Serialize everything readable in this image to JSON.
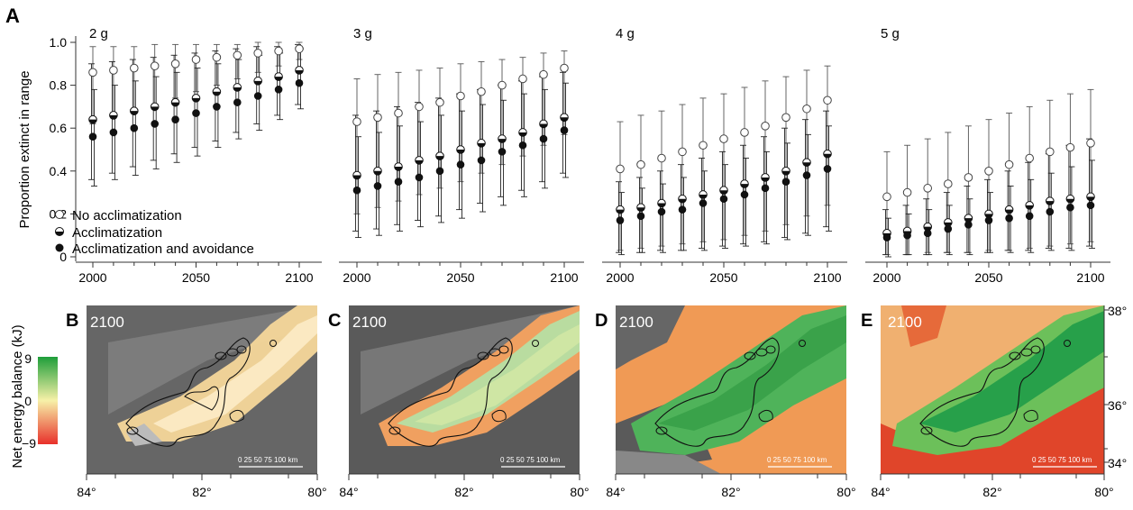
{
  "panel_a": {
    "letter": "A",
    "ylabel": "Proportion extinct in range",
    "yticks": [
      "0",
      "0.2",
      "0.4",
      "0.6",
      "0.8",
      "1.0"
    ],
    "xticks": [
      "2000",
      "2050",
      "2100"
    ],
    "legend": [
      {
        "label": "No acclimatization",
        "marker": "open-circle"
      },
      {
        "label": "Acclimatization",
        "marker": "half-filled-circle"
      },
      {
        "label": "Acclimatization and avoidance",
        "marker": "filled-circle"
      }
    ]
  },
  "chart_data": [
    {
      "type": "scatter",
      "title": "2 g",
      "xlabel": "",
      "ylabel": "Proportion extinct in range",
      "x": [
        2000,
        2010,
        2020,
        2030,
        2040,
        2050,
        2060,
        2070,
        2080,
        2090,
        2100
      ],
      "xlim": [
        1995,
        2105
      ],
      "ylim": [
        0,
        1
      ],
      "error_bars": "vertical whiskers",
      "series": [
        {
          "name": "No acclimatization",
          "values": [
            0.86,
            0.87,
            0.88,
            0.89,
            0.9,
            0.92,
            0.93,
            0.94,
            0.95,
            0.96,
            0.97
          ],
          "lower": [
            0.62,
            0.65,
            0.68,
            0.71,
            0.74,
            0.77,
            0.8,
            0.83,
            0.86,
            0.89,
            0.92
          ],
          "upper": [
            0.98,
            0.98,
            0.98,
            0.99,
            0.99,
            0.99,
            0.99,
            0.99,
            1.0,
            1.0,
            1.0
          ]
        },
        {
          "name": "Acclimatization",
          "values": [
            0.64,
            0.66,
            0.68,
            0.7,
            0.72,
            0.74,
            0.77,
            0.79,
            0.82,
            0.84,
            0.87
          ],
          "lower": [
            0.36,
            0.39,
            0.42,
            0.45,
            0.48,
            0.51,
            0.54,
            0.58,
            0.62,
            0.66,
            0.71
          ],
          "upper": [
            0.9,
            0.91,
            0.92,
            0.93,
            0.94,
            0.95,
            0.96,
            0.97,
            0.98,
            0.98,
            0.99
          ]
        },
        {
          "name": "Acclimatization and avoidance",
          "values": [
            0.56,
            0.58,
            0.6,
            0.62,
            0.64,
            0.67,
            0.7,
            0.72,
            0.75,
            0.78,
            0.81
          ],
          "lower": [
            0.33,
            0.36,
            0.38,
            0.41,
            0.44,
            0.47,
            0.51,
            0.55,
            0.59,
            0.64,
            0.69
          ],
          "upper": [
            0.78,
            0.8,
            0.82,
            0.84,
            0.86,
            0.88,
            0.9,
            0.92,
            0.94,
            0.95,
            0.97
          ]
        }
      ]
    },
    {
      "type": "scatter",
      "title": "3 g",
      "xlabel": "",
      "ylabel": "",
      "x": [
        2000,
        2010,
        2020,
        2030,
        2040,
        2050,
        2060,
        2070,
        2080,
        2090,
        2100
      ],
      "xlim": [
        1995,
        2105
      ],
      "ylim": [
        0,
        1
      ],
      "error_bars": "vertical whiskers",
      "series": [
        {
          "name": "No acclimatization",
          "values": [
            0.63,
            0.65,
            0.67,
            0.7,
            0.72,
            0.75,
            0.77,
            0.8,
            0.83,
            0.85,
            0.88
          ],
          "lower": [
            0.2,
            0.23,
            0.26,
            0.29,
            0.32,
            0.35,
            0.39,
            0.43,
            0.47,
            0.52,
            0.57
          ],
          "upper": [
            0.83,
            0.85,
            0.86,
            0.87,
            0.88,
            0.9,
            0.91,
            0.92,
            0.93,
            0.95,
            0.96
          ]
        },
        {
          "name": "Acclimatization",
          "values": [
            0.38,
            0.4,
            0.42,
            0.45,
            0.47,
            0.5,
            0.53,
            0.55,
            0.58,
            0.62,
            0.65
          ],
          "lower": [
            0.12,
            0.13,
            0.15,
            0.17,
            0.19,
            0.22,
            0.25,
            0.28,
            0.31,
            0.35,
            0.39
          ],
          "upper": [
            0.66,
            0.68,
            0.7,
            0.72,
            0.74,
            0.76,
            0.78,
            0.8,
            0.82,
            0.84,
            0.86
          ]
        },
        {
          "name": "Acclimatization and avoidance",
          "values": [
            0.31,
            0.33,
            0.35,
            0.37,
            0.4,
            0.43,
            0.45,
            0.49,
            0.52,
            0.55,
            0.59
          ],
          "lower": [
            0.09,
            0.1,
            0.12,
            0.14,
            0.16,
            0.18,
            0.21,
            0.24,
            0.28,
            0.32,
            0.37
          ],
          "upper": [
            0.56,
            0.58,
            0.61,
            0.63,
            0.66,
            0.68,
            0.71,
            0.73,
            0.76,
            0.78,
            0.81
          ]
        }
      ]
    },
    {
      "type": "scatter",
      "title": "4 g",
      "xlabel": "",
      "ylabel": "",
      "x": [
        2000,
        2010,
        2020,
        2030,
        2040,
        2050,
        2060,
        2070,
        2080,
        2090,
        2100
      ],
      "xlim": [
        1995,
        2105
      ],
      "ylim": [
        0,
        1
      ],
      "error_bars": "vertical whiskers",
      "series": [
        {
          "name": "No acclimatization",
          "values": [
            0.41,
            0.43,
            0.46,
            0.49,
            0.52,
            0.55,
            0.58,
            0.61,
            0.65,
            0.69,
            0.73
          ],
          "lower": [
            0.03,
            0.04,
            0.05,
            0.06,
            0.07,
            0.08,
            0.1,
            0.12,
            0.15,
            0.19,
            0.24
          ],
          "upper": [
            0.63,
            0.66,
            0.68,
            0.71,
            0.74,
            0.76,
            0.79,
            0.82,
            0.84,
            0.87,
            0.89
          ]
        },
        {
          "name": "Acclimatization",
          "values": [
            0.22,
            0.23,
            0.25,
            0.27,
            0.29,
            0.31,
            0.34,
            0.37,
            0.4,
            0.44,
            0.48
          ],
          "lower": [
            0.02,
            0.02,
            0.03,
            0.03,
            0.04,
            0.05,
            0.06,
            0.07,
            0.09,
            0.11,
            0.14
          ],
          "upper": [
            0.35,
            0.37,
            0.4,
            0.43,
            0.46,
            0.49,
            0.52,
            0.56,
            0.6,
            0.64,
            0.68
          ]
        },
        {
          "name": "Acclimatization and avoidance",
          "values": [
            0.17,
            0.19,
            0.21,
            0.22,
            0.25,
            0.27,
            0.29,
            0.32,
            0.35,
            0.38,
            0.41
          ],
          "lower": [
            0.01,
            0.02,
            0.02,
            0.03,
            0.03,
            0.04,
            0.05,
            0.06,
            0.08,
            0.1,
            0.12
          ],
          "upper": [
            0.3,
            0.32,
            0.34,
            0.37,
            0.4,
            0.43,
            0.46,
            0.49,
            0.53,
            0.57,
            0.61
          ]
        }
      ]
    },
    {
      "type": "scatter",
      "title": "5 g",
      "xlabel": "",
      "ylabel": "",
      "x": [
        2000,
        2010,
        2020,
        2030,
        2040,
        2050,
        2060,
        2070,
        2080,
        2090,
        2100
      ],
      "xlim": [
        1995,
        2105
      ],
      "ylim": [
        0,
        1
      ],
      "error_bars": "vertical whiskers",
      "series": [
        {
          "name": "No acclimatization",
          "values": [
            0.28,
            0.3,
            0.32,
            0.34,
            0.37,
            0.4,
            0.43,
            0.46,
            0.49,
            0.51,
            0.53
          ],
          "lower": [
            0.01,
            0.01,
            0.02,
            0.02,
            0.02,
            0.03,
            0.03,
            0.04,
            0.05,
            0.06,
            0.07
          ],
          "upper": [
            0.49,
            0.52,
            0.55,
            0.58,
            0.61,
            0.64,
            0.67,
            0.7,
            0.73,
            0.76,
            0.78
          ]
        },
        {
          "name": "Acclimatization",
          "values": [
            0.11,
            0.12,
            0.14,
            0.16,
            0.18,
            0.2,
            0.22,
            0.24,
            0.26,
            0.27,
            0.28
          ],
          "lower": [
            0.01,
            0.01,
            0.01,
            0.02,
            0.02,
            0.02,
            0.03,
            0.03,
            0.04,
            0.04,
            0.05
          ],
          "upper": [
            0.22,
            0.24,
            0.27,
            0.3,
            0.33,
            0.36,
            0.4,
            0.44,
            0.48,
            0.52,
            0.55
          ]
        },
        {
          "name": "Acclimatization and avoidance",
          "values": [
            0.09,
            0.1,
            0.11,
            0.13,
            0.15,
            0.17,
            0.18,
            0.19,
            0.21,
            0.23,
            0.24
          ],
          "lower": [
            0.0,
            0.01,
            0.01,
            0.01,
            0.01,
            0.02,
            0.02,
            0.02,
            0.03,
            0.03,
            0.04
          ],
          "upper": [
            0.18,
            0.2,
            0.22,
            0.24,
            0.27,
            0.3,
            0.33,
            0.36,
            0.39,
            0.42,
            0.45
          ]
        }
      ]
    }
  ],
  "maps": {
    "panels": [
      {
        "letter": "B",
        "year": "2100",
        "scenario_colors": {
          "background": "#5a5a5a",
          "fill": "#f6d79a"
        }
      },
      {
        "letter": "C",
        "year": "2100",
        "scenario_colors": {
          "background": "#5a5a5a",
          "fill": "#b9dca0"
        }
      },
      {
        "letter": "D",
        "year": "2100",
        "scenario_colors": {
          "background": "#f09a55",
          "fill": "#4fb35a"
        }
      },
      {
        "letter": "E",
        "year": "2100",
        "scenario_colors": {
          "background": "#e0452a",
          "fill": "#27a04a"
        }
      }
    ],
    "colorbar": {
      "label": "Net energy balance (kJ)",
      "ticks": [
        "9",
        "0",
        "−9"
      ],
      "colors": [
        "#1e9e3a",
        "#f7f1a8",
        "#e8302a"
      ]
    },
    "scale_bar": "0  25  50  75 100 km",
    "lon_ticks": [
      "84°",
      "82°",
      "80°"
    ],
    "lat_ticks": [
      "38°",
      "36°",
      "34°"
    ]
  }
}
